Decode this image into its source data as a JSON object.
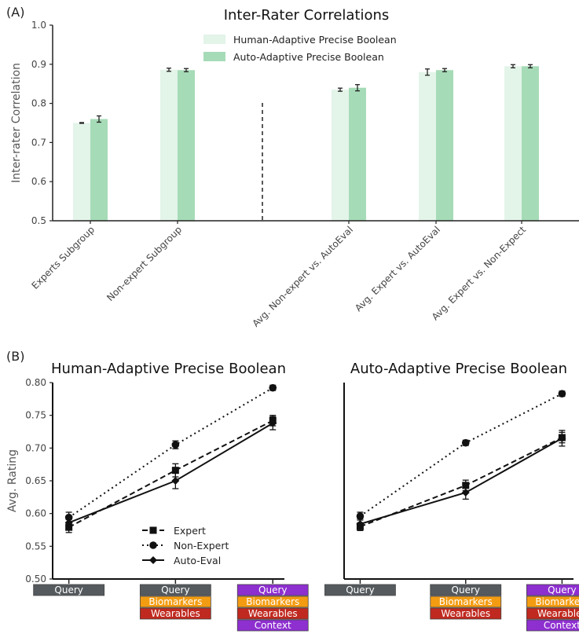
{
  "panel_a_label": "(A)",
  "panel_b_label": "(B)",
  "chart_data": [
    {
      "type": "bar",
      "title": "Inter-Rater Correlations",
      "xlabel": "",
      "ylabel": "Inter-rater Correlation",
      "ylim": [
        0.5,
        1.0
      ],
      "yticks": [
        "0.5",
        "0.6",
        "0.7",
        "0.8",
        "0.9",
        "1.0"
      ],
      "categories": [
        "Experts Subgroup",
        "Non-expert Subgroup",
        "Avg. Non-expert vs. AutoEval",
        "Avg. Expert vs. AutoEval",
        "Avg. Expert vs. Non-Expect"
      ],
      "series": [
        {
          "name": "Human-Adaptive Precise Boolean",
          "color": "#e3f4e9",
          "values": [
            0.75,
            0.886,
            0.835,
            0.88,
            0.895
          ],
          "errors": [
            0.001,
            0.004,
            0.004,
            0.008,
            0.004
          ]
        },
        {
          "name": "Auto-Adaptive Precise Boolean",
          "color": "#a6dbb7",
          "values": [
            0.76,
            0.885,
            0.84,
            0.885,
            0.895
          ],
          "errors": [
            0.008,
            0.004,
            0.008,
            0.004,
            0.004
          ]
        }
      ],
      "legend": "top-center",
      "separator": "dashed vertical line between Non-expert Subgroup and Avg. Non-expert vs. AutoEval",
      "grid": false
    },
    {
      "type": "line",
      "title": "Human-Adaptive Precise Boolean",
      "xlabel": "",
      "ylabel": "Avg. Rating",
      "ylim": [
        0.5,
        0.8
      ],
      "yticks": [
        "0.50",
        "0.55",
        "0.60",
        "0.65",
        "0.70",
        "0.75",
        "0.80"
      ],
      "x": [
        1,
        2,
        3
      ],
      "series": [
        {
          "name": "Expert",
          "style": "dashed",
          "marker": "square",
          "values": [
            0.579,
            0.666,
            0.742
          ],
          "errors": [
            0.008,
            0.01,
            0.008
          ]
        },
        {
          "name": "Non-Expert",
          "style": "dotted",
          "marker": "circle",
          "values": [
            0.594,
            0.705,
            0.792
          ],
          "errors": [
            0.008,
            0.006,
            0.004
          ]
        },
        {
          "name": "Auto-Eval",
          "style": "solid",
          "marker": "diamond",
          "values": [
            0.586,
            0.65,
            0.738
          ],
          "errors": [
            0.005,
            0.012,
            0.01
          ]
        }
      ],
      "legend": "lower-center",
      "grid": false
    },
    {
      "type": "line",
      "title": "Auto-Adaptive Precise Boolean",
      "xlabel": "",
      "ylabel": "",
      "ylim": [
        0.5,
        0.8
      ],
      "x": [
        1,
        2,
        3
      ],
      "series": [
        {
          "name": "Expert",
          "style": "dashed",
          "marker": "square",
          "values": [
            0.58,
            0.643,
            0.716
          ],
          "errors": [
            0.006,
            0.008,
            0.008
          ]
        },
        {
          "name": "Non-Expert",
          "style": "dotted",
          "marker": "circle",
          "values": [
            0.596,
            0.708,
            0.783
          ],
          "errors": [
            0.006,
            0.004,
            0.004
          ]
        },
        {
          "name": "Auto-Eval",
          "style": "solid",
          "marker": "diamond",
          "values": [
            0.584,
            0.632,
            0.715
          ],
          "errors": [
            0.008,
            0.01,
            0.012
          ]
        }
      ],
      "grid": false
    }
  ],
  "conditions": [
    [
      {
        "label": "Query",
        "color": "#555a5e"
      }
    ],
    [
      {
        "label": "Query",
        "color": "#555a5e"
      },
      {
        "label": "Biomarkers",
        "color": "#f39c12"
      },
      {
        "label": "Wearables",
        "color": "#c0291f"
      }
    ],
    [
      {
        "label": "Query",
        "color": "#8e2fd0"
      },
      {
        "label": "Biomarkers",
        "color": "#f39c12"
      },
      {
        "label": "Wearables",
        "color": "#c0291f"
      },
      {
        "label": "Context",
        "color": "#8e2fd0"
      }
    ]
  ]
}
